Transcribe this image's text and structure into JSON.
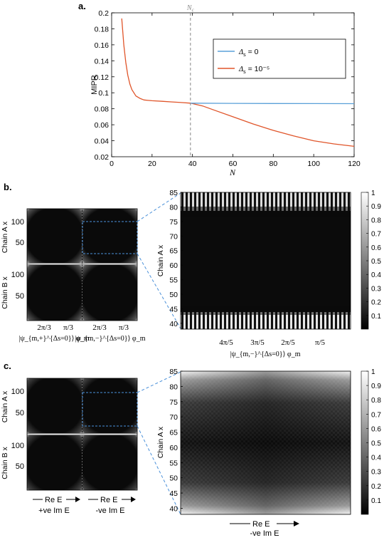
{
  "panels": {
    "a": "a.",
    "b": "b.",
    "c": "c."
  },
  "chart_data": [
    {
      "type": "line",
      "panel": "a",
      "ylabel": "MIPR",
      "xlabel": "N",
      "xlim": [
        0,
        120
      ],
      "ylim": [
        0.02,
        0.2
      ],
      "x_ticks": [
        0,
        20,
        40,
        60,
        80,
        100,
        120
      ],
      "y_ticks": [
        0.02,
        0.04,
        0.06,
        0.08,
        0.1,
        0.12,
        0.14,
        0.16,
        0.18,
        0.2
      ],
      "vline": {
        "x": 39,
        "label": "N_c"
      },
      "legend_position": "top-right",
      "grid": false,
      "series": [
        {
          "name": "Δ_s = 0",
          "color": "#5aa0d8",
          "x": [
            39,
            60,
            80,
            100,
            120
          ],
          "y": [
            0.087,
            0.0867,
            0.0866,
            0.0865,
            0.0864
          ]
        },
        {
          "name": "Δ_s = 10⁻⁵",
          "color": "#e0552a",
          "x": [
            5,
            6,
            7,
            8,
            9,
            10,
            12,
            14,
            16,
            18,
            20,
            25,
            30,
            35,
            39,
            45,
            50,
            60,
            70,
            80,
            90,
            100,
            110,
            120
          ],
          "y": [
            0.193,
            0.16,
            0.138,
            0.122,
            0.111,
            0.104,
            0.096,
            0.093,
            0.091,
            0.0905,
            0.09,
            0.0893,
            0.0885,
            0.0877,
            0.087,
            0.0835,
            0.079,
            0.07,
            0.061,
            0.053,
            0.046,
            0.04,
            0.036,
            0.033
          ]
        }
      ]
    },
    {
      "type": "heatmap",
      "panel": "b-left",
      "ylabel_top": "Chain A x",
      "ylabel_bottom": "Chain B x",
      "y_ticks": [
        100,
        50
      ],
      "x_labels_left": [
        "2π/3",
        "π/3"
      ],
      "x_labels_right": [
        "2π/3",
        "π/3"
      ],
      "col_labels": [
        "|ψ_{m,+}^{Δs=0}⟩ φ_m",
        "|ψ_{m,−}^{Δs=0}⟩ φ_m"
      ]
    },
    {
      "type": "heatmap",
      "panel": "b-right",
      "ylabel": "Chain A x",
      "xlabel": "|ψ_{m,−}^{Δs=0}⟩ φ_m",
      "ylim": [
        38,
        85
      ],
      "y_ticks": [
        85,
        80,
        75,
        70,
        65,
        60,
        55,
        50,
        45,
        40
      ],
      "x_tick_labels": [
        "4π/5",
        "3π/5",
        "2π/5",
        "π/5"
      ],
      "colorbar": {
        "min": 0,
        "max": 1,
        "ticks": [
          0.1,
          0.2,
          0.3,
          0.4,
          0.5,
          0.6,
          0.7,
          0.8,
          0.9,
          1
        ]
      }
    },
    {
      "type": "heatmap",
      "panel": "c-left",
      "ylabel_top": "Chain A x",
      "ylabel_bottom": "Chain B x",
      "y_ticks": [
        100,
        50
      ],
      "col_labels_line1": [
        "Re E",
        "Re E"
      ],
      "col_labels_line2": [
        "+ve Im E",
        "-ve Im E"
      ]
    },
    {
      "type": "heatmap",
      "panel": "c-right",
      "ylabel": "Chain A x",
      "xlabel_line1": "Re E",
      "xlabel_line2": "-ve Im E",
      "ylim": [
        38,
        85
      ],
      "y_ticks": [
        85,
        80,
        75,
        70,
        65,
        60,
        55,
        50,
        45,
        40
      ],
      "colorbar": {
        "min": 0,
        "max": 1,
        "ticks": [
          0.1,
          0.2,
          0.3,
          0.4,
          0.5,
          0.6,
          0.7,
          0.8,
          0.9,
          1
        ]
      }
    }
  ]
}
